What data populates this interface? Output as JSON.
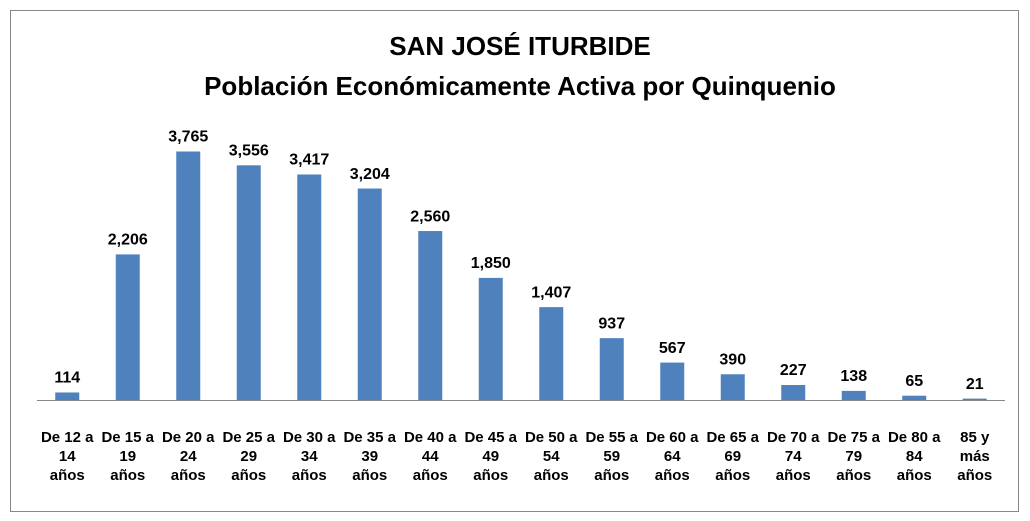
{
  "chart_data": {
    "type": "bar",
    "title": "SAN JOSÉ ITURBIDE",
    "subtitle": "Población Económicamente Activa por Quinquenio",
    "categories": [
      "De 12 a 14 años",
      "De 15 a 19 años",
      "De 20 a 24 años",
      "De 25 a 29 años",
      "De 30 a 34 años",
      "De 35 a 39 años",
      "De 40 a 44 años",
      "De 45 a 49 años",
      "De 50 a 54 años",
      "De 55 a 59 años",
      "De 60 a 64 años",
      "De 65 a 69 años",
      "De 70 a 74 años",
      "De 75 a 79 años",
      "De 80 a 84 años",
      "85 y más años"
    ],
    "values": [
      114,
      2206,
      3765,
      3556,
      3417,
      3204,
      2560,
      1850,
      1407,
      937,
      567,
      390,
      227,
      138,
      65,
      21
    ],
    "value_labels": [
      "114",
      "2,206",
      "3,765",
      "3,556",
      "3,417",
      "3,204",
      "2,560",
      "1,850",
      "1,407",
      "937",
      "567",
      "390",
      "227",
      "138",
      "65",
      "21"
    ],
    "color": "#4f81bd",
    "ylim": [
      0,
      4000
    ]
  }
}
